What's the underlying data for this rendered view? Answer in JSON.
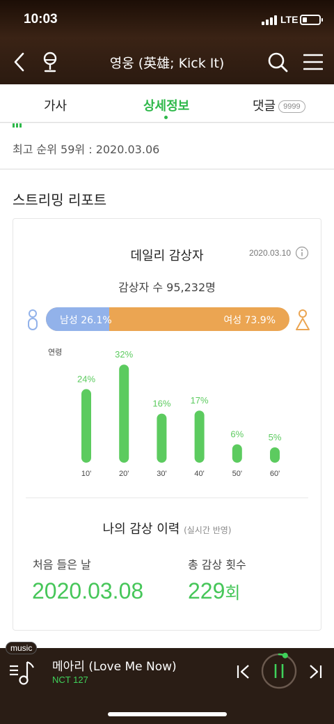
{
  "status_bar": {
    "time": "10:03",
    "network": "LTE"
  },
  "header": {
    "title": "영웅 (英雄; Kick It)"
  },
  "tabs": [
    {
      "label": "가사"
    },
    {
      "label": "상세정보"
    },
    {
      "label": "댓글",
      "badge": "9999"
    }
  ],
  "chart_info": {
    "peak_rank_line": "최고 순위 59위 : 2020.03.06"
  },
  "streaming_report": {
    "section_title": "스트리밍 리포트",
    "daily": {
      "title": "데일리 감상자",
      "date": "2020.03.10",
      "listeners": "감상자 수 95,232명",
      "gender": {
        "male_label": "남성 26.1%",
        "female_label": "여성 73.9%",
        "male_fraction": 0.261
      },
      "age": {
        "axis_label": "연령",
        "groups": [
          {
            "label": "10'",
            "value": 24,
            "display": "24%"
          },
          {
            "label": "20'",
            "value": 32,
            "display": "32%"
          },
          {
            "label": "30'",
            "value": 16,
            "display": "16%"
          },
          {
            "label": "40'",
            "value": 17,
            "display": "17%"
          },
          {
            "label": "50'",
            "value": 6,
            "display": "6%"
          },
          {
            "label": "60'",
            "value": 5,
            "display": "5%"
          }
        ]
      }
    },
    "my_history": {
      "title": "나의 감상 이력",
      "subtitle": "(실시간 반영)",
      "first_listen_label": "처음 들은 날",
      "first_listen_value": "2020.03.08",
      "total_count_label": "총 감상 횟수",
      "total_count_value": "229",
      "total_count_unit": "회"
    }
  },
  "player": {
    "tag": "music",
    "song": "메아리 (Love Me Now)",
    "artist": "NCT 127",
    "progress_fraction": 0.06
  },
  "colors": {
    "accent_green": "#2eb84a",
    "bar_green": "#5ccb5f",
    "male_blue": "#92b2ea",
    "female_orange": "#eba552"
  }
}
